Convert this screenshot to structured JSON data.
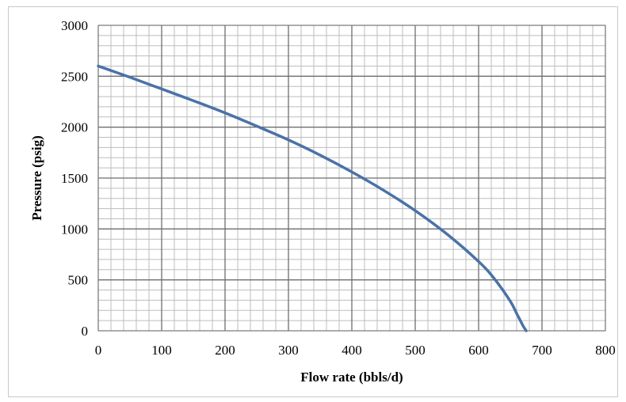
{
  "chart_data": {
    "type": "line",
    "title": "",
    "xlabel": "Flow rate (bbls/d)",
    "ylabel": "Pressure  (psig)",
    "xlim": [
      0,
      800
    ],
    "ylim": [
      0,
      3000
    ],
    "x_ticks": [
      0,
      100,
      200,
      300,
      400,
      500,
      600,
      700,
      800
    ],
    "y_ticks": [
      0,
      500,
      1000,
      1500,
      2000,
      2500,
      3000
    ],
    "x_tick_labels": [
      "0",
      "100",
      "200",
      "300",
      "400",
      "500",
      "600",
      "700",
      "800"
    ],
    "y_tick_labels": [
      "0",
      "500",
      "1000",
      "1500",
      "2000",
      "2500",
      "3000"
    ],
    "grid": true,
    "minor_grid": true,
    "legend": "none",
    "series": [
      {
        "color": "#4a72a8",
        "x": [
          0,
          50,
          100,
          150,
          200,
          250,
          300,
          350,
          400,
          450,
          500,
          550,
          600,
          625,
          650,
          660,
          670,
          675
        ],
        "y": [
          2600,
          2490,
          2375,
          2260,
          2140,
          2010,
          1875,
          1725,
          1560,
          1380,
          1180,
          950,
          680,
          510,
          290,
          170,
          50,
          0
        ]
      }
    ]
  }
}
